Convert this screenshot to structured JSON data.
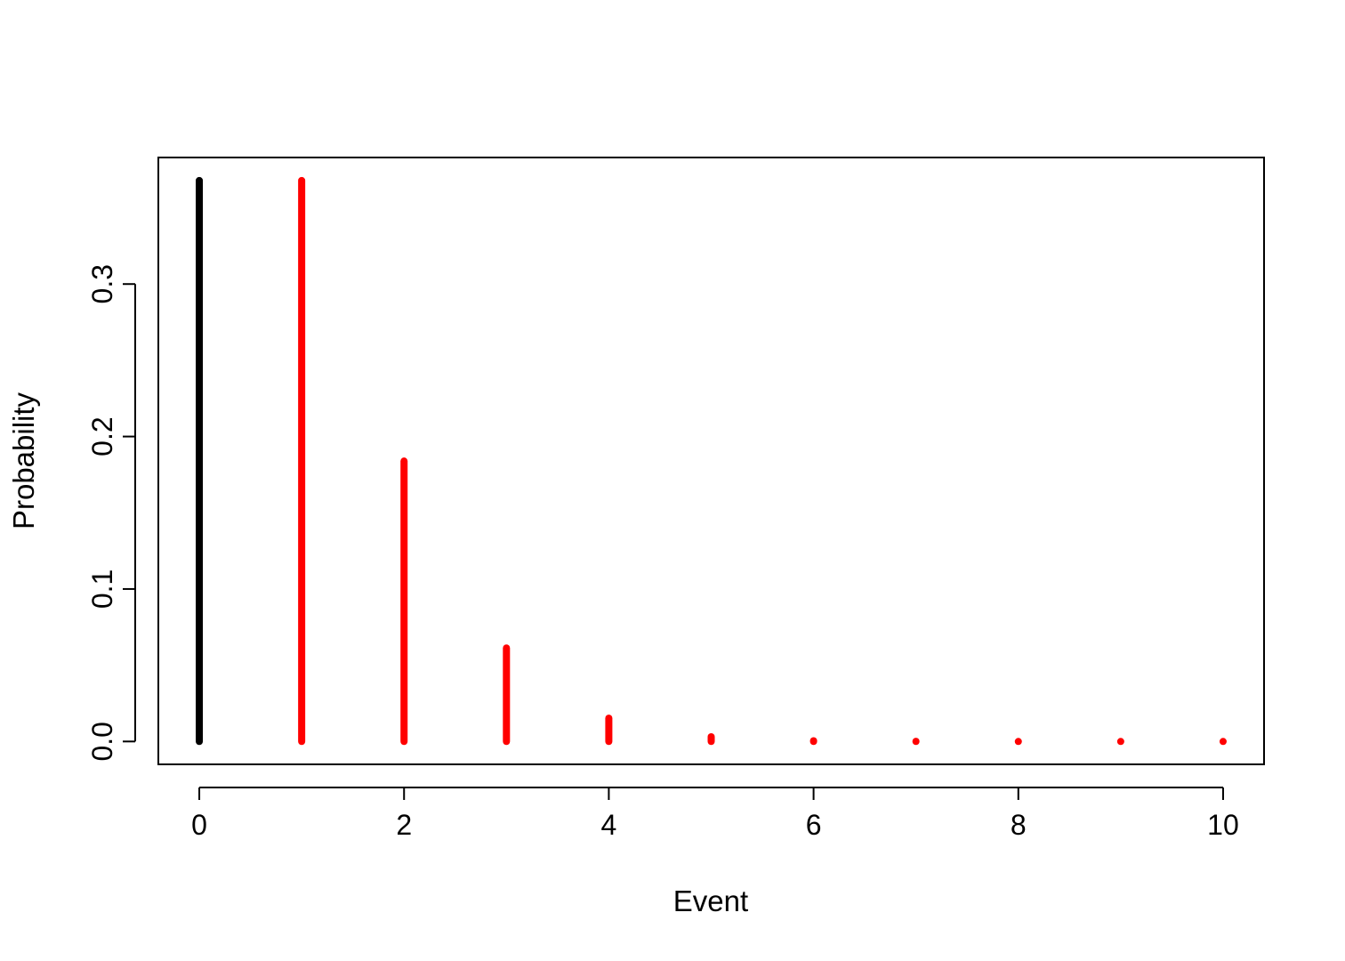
{
  "chart_data": {
    "type": "bar",
    "title": "",
    "xlabel": "Event",
    "ylabel": "Probability",
    "xlim": [
      -0.4,
      10.4
    ],
    "ylim": [
      -0.015,
      0.383
    ],
    "xticks": [
      0,
      2,
      4,
      6,
      8,
      10
    ],
    "xtick_labels": [
      "0",
      "2",
      "4",
      "6",
      "8",
      "10"
    ],
    "yticks": [
      0.0,
      0.1,
      0.2,
      0.3
    ],
    "ytick_labels": [
      "0.0",
      "0.1",
      "0.2",
      "0.3"
    ],
    "grid": false,
    "legend": "none",
    "colors": {
      "first_bar": "#000000",
      "other_bars": "#ff0000",
      "axis": "#000000"
    },
    "x": [
      0,
      1,
      2,
      3,
      4,
      5,
      6,
      7,
      8,
      9,
      10
    ],
    "values": [
      0.3679,
      0.3679,
      0.1839,
      0.0613,
      0.0153,
      0.0031,
      0.0005,
      0.0001,
      1e-05,
      1e-06,
      1e-07
    ],
    "bar_colors": [
      "#000000",
      "#ff0000",
      "#ff0000",
      "#ff0000",
      "#ff0000",
      "#ff0000",
      "#ff0000",
      "#ff0000",
      "#ff0000",
      "#ff0000",
      "#ff0000"
    ]
  }
}
